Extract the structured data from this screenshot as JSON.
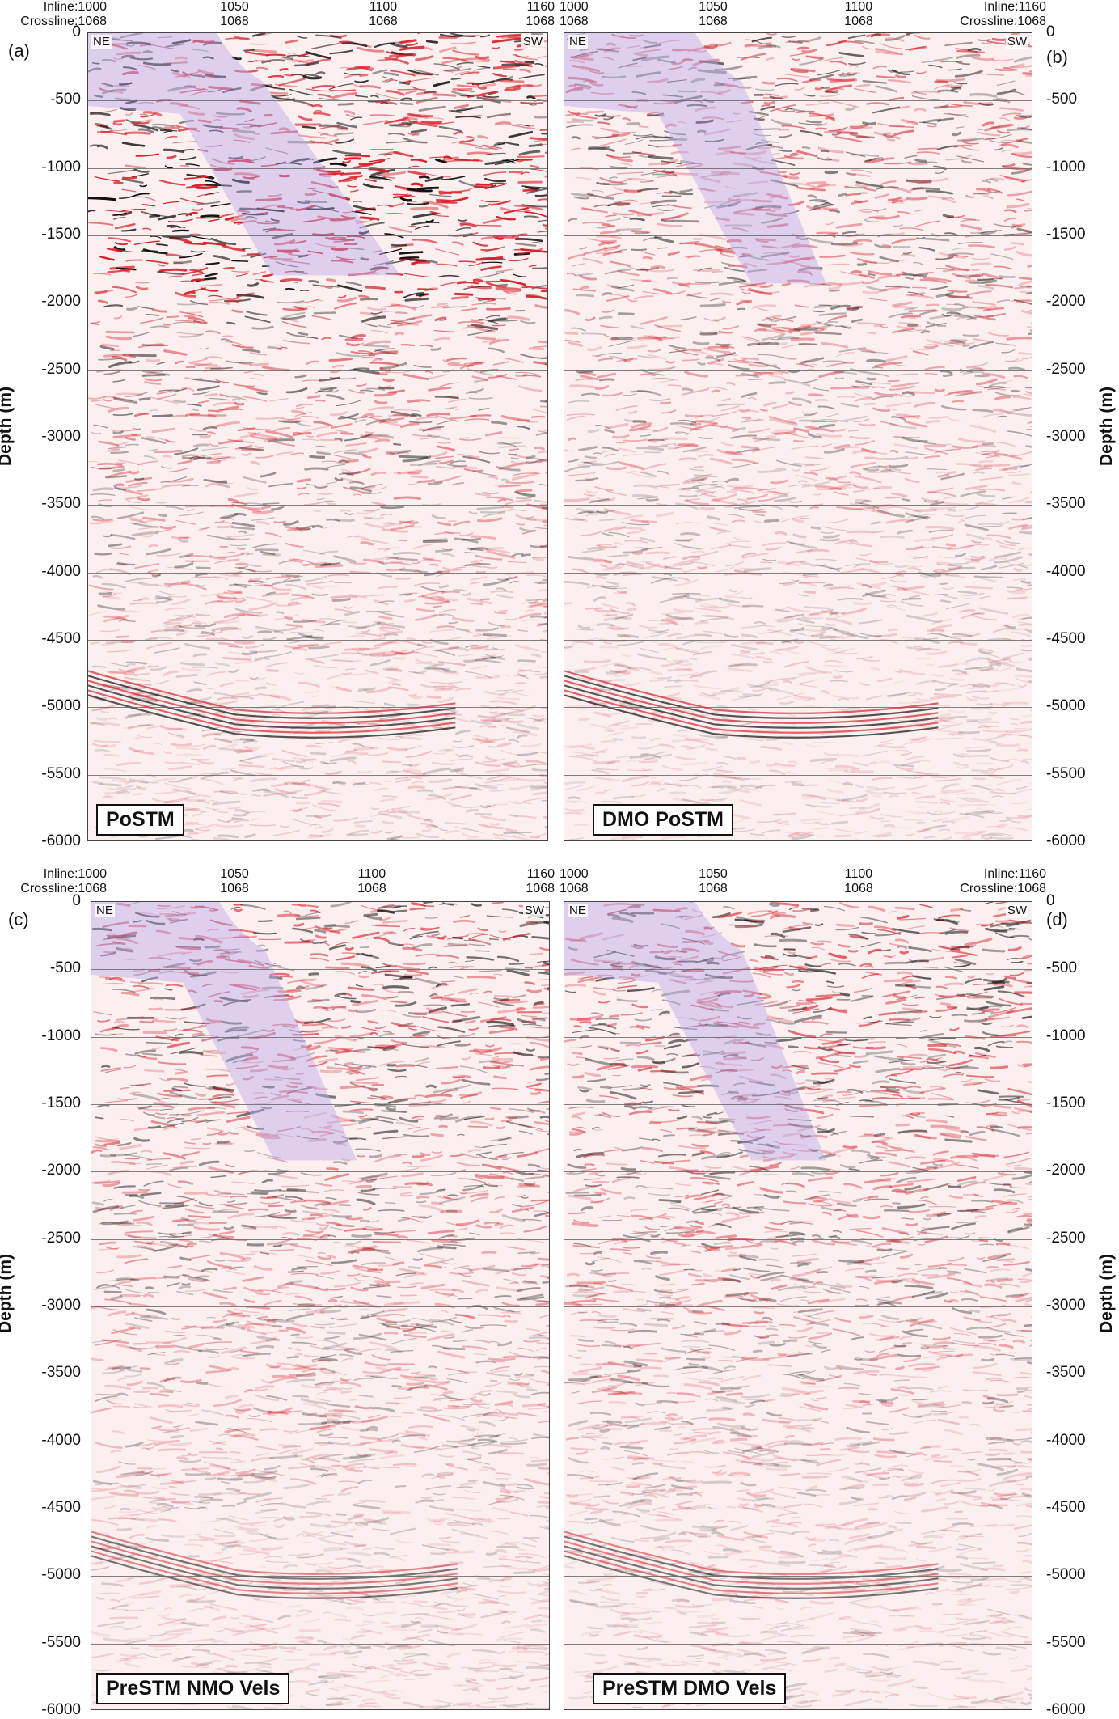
{
  "figure": {
    "depth_axis_title": "Depth (m)",
    "depth_ticks": [
      "0",
      "-500",
      "-1000",
      "-1500",
      "-2000",
      "-2500",
      "-3000",
      "-3500",
      "-4000",
      "-4500",
      "-5000",
      "-5500",
      "-6000"
    ],
    "depth_ticks_right": [
      "0",
      "-500",
      "-1000",
      "-1500",
      "-2000",
      "-2500",
      "-3000",
      "-3500",
      "-4000",
      "-4500",
      "-5000",
      "-5500",
      "-6000"
    ],
    "direction_left": "NE",
    "direction_right": "SW",
    "panels": [
      {
        "letter": "(a)",
        "label": "PoSTM",
        "top_annotations": {
          "first": [
            "Inline:1000",
            "Crossline:1068"
          ],
          "second": [
            "1050",
            "1068"
          ],
          "third": [
            "1100",
            "1068"
          ],
          "fourth": [
            "1160",
            "1068"
          ]
        }
      },
      {
        "letter": "(b)",
        "label": "DMO PoSTM",
        "top_annotations": {
          "first": [
            "1000",
            "1068"
          ],
          "second": [
            "1050",
            "1068"
          ],
          "third": [
            "1100",
            "1068"
          ],
          "fourth": [
            "Inline:1160",
            "Crossline:1068"
          ]
        }
      },
      {
        "letter": "(c)",
        "label": "PreSTM NMO Vels",
        "top_annotations": {
          "first": [
            "Inline:1000",
            "Crossline:1068"
          ],
          "second": [
            "1050",
            "1068"
          ],
          "third": [
            "1100",
            "1068"
          ],
          "fourth": [
            "1160",
            "1068"
          ]
        }
      },
      {
        "letter": "(d)",
        "label": "PreSTM DMO Vels",
        "top_annotations": {
          "first": [
            "1000",
            "1068"
          ],
          "second": [
            "1050",
            "1068"
          ],
          "third": [
            "1100",
            "1068"
          ],
          "fourth": [
            "Inline:1160",
            "Crossline:1068"
          ]
        }
      }
    ],
    "colors": {
      "seismic_peak": "#d8222a",
      "seismic_trough": "#111111",
      "background": "#fbeff0",
      "overlay": "#b8a8e8"
    }
  }
}
